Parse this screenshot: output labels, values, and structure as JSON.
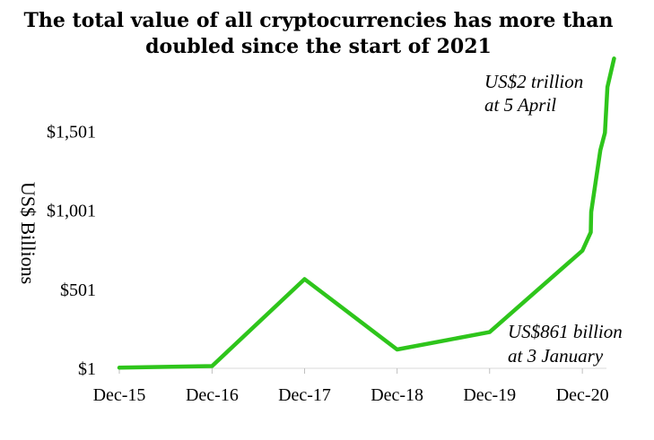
{
  "chart_data": {
    "type": "line",
    "title_lines": [
      "The total value of all cryptocurrencies has more than",
      "doubled since the start of 2021"
    ],
    "ylabel": "US$ Billions",
    "xlabel": "",
    "ylim": [
      1,
      1990
    ],
    "yticks": [
      {
        "value": 1,
        "label": "$1"
      },
      {
        "value": 501,
        "label": "$501"
      },
      {
        "value": 1001,
        "label": "$1,001"
      },
      {
        "value": 1501,
        "label": "$1,501"
      }
    ],
    "xlim": [
      "2015-12-01",
      "2021-05-01"
    ],
    "xticks": [
      {
        "date": "2015-12-01",
        "label": "Dec-15"
      },
      {
        "date": "2016-12-01",
        "label": "Dec-16"
      },
      {
        "date": "2017-12-01",
        "label": "Dec-17"
      },
      {
        "date": "2018-12-01",
        "label": "Dec-18"
      },
      {
        "date": "2019-12-01",
        "label": "Dec-19"
      },
      {
        "date": "2020-12-01",
        "label": "Dec-20"
      }
    ],
    "grid": false,
    "line_color": "#2ec51b",
    "series": [
      {
        "points": [
          {
            "date": "2015-12-01",
            "value": 5
          },
          {
            "date": "2016-12-01",
            "value": 15
          },
          {
            "date": "2017-12-01",
            "value": 565
          },
          {
            "date": "2018-12-01",
            "value": 120
          },
          {
            "date": "2019-12-01",
            "value": 230
          },
          {
            "date": "2020-12-01",
            "value": 745
          },
          {
            "date": "2021-01-03",
            "value": 861
          },
          {
            "date": "2021-01-05",
            "value": 990
          },
          {
            "date": "2021-02-10",
            "value": 1380
          },
          {
            "date": "2021-02-28",
            "value": 1490
          },
          {
            "date": "2021-03-10",
            "value": 1780
          },
          {
            "date": "2021-04-05",
            "value": 1960
          }
        ]
      }
    ],
    "annotations": [
      {
        "name": "annotation-peak",
        "lines": [
          "US$2 trillion",
          "at 5 April"
        ]
      },
      {
        "name": "annotation-january",
        "lines": [
          "US$861 billion",
          "at 3 January"
        ]
      }
    ]
  }
}
